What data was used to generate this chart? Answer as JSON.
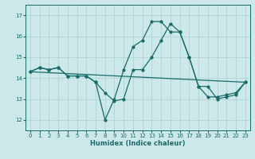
{
  "xlabel": "Humidex (Indice chaleur)",
  "bg_color": "#cce8e8",
  "grid_color": "#afd4d4",
  "line_color": "#1a6b6b",
  "xlim": [
    -0.5,
    23.5
  ],
  "ylim": [
    11.5,
    17.5
  ],
  "yticks": [
    12,
    13,
    14,
    15,
    16,
    17
  ],
  "xticks": [
    0,
    1,
    2,
    3,
    4,
    5,
    6,
    7,
    8,
    9,
    10,
    11,
    12,
    13,
    14,
    15,
    16,
    17,
    18,
    19,
    20,
    21,
    22,
    23
  ],
  "series1_x": [
    0,
    1,
    2,
    3,
    4,
    5,
    6,
    7,
    8,
    9,
    10,
    11,
    12,
    13,
    14,
    15,
    16,
    17,
    18,
    19,
    20,
    21,
    22,
    23
  ],
  "series1_y": [
    14.3,
    14.5,
    14.4,
    14.5,
    14.1,
    14.1,
    14.1,
    13.8,
    12.0,
    13.0,
    14.4,
    15.5,
    15.8,
    16.7,
    16.7,
    16.2,
    16.2,
    15.0,
    13.6,
    13.1,
    13.1,
    13.2,
    13.3,
    13.8
  ],
  "series2_x": [
    0,
    1,
    2,
    3,
    4,
    5,
    6,
    7,
    8,
    9,
    10,
    11,
    12,
    13,
    14,
    15,
    16,
    17,
    18,
    19,
    20,
    21,
    22,
    23
  ],
  "series2_y": [
    14.3,
    14.5,
    14.4,
    14.5,
    14.1,
    14.1,
    14.1,
    13.8,
    13.3,
    12.9,
    13.0,
    14.4,
    14.4,
    15.0,
    15.8,
    16.6,
    16.2,
    15.0,
    13.6,
    13.6,
    13.0,
    13.1,
    13.2,
    13.8
  ],
  "series3_x": [
    0,
    23
  ],
  "series3_y": [
    14.3,
    13.8
  ]
}
